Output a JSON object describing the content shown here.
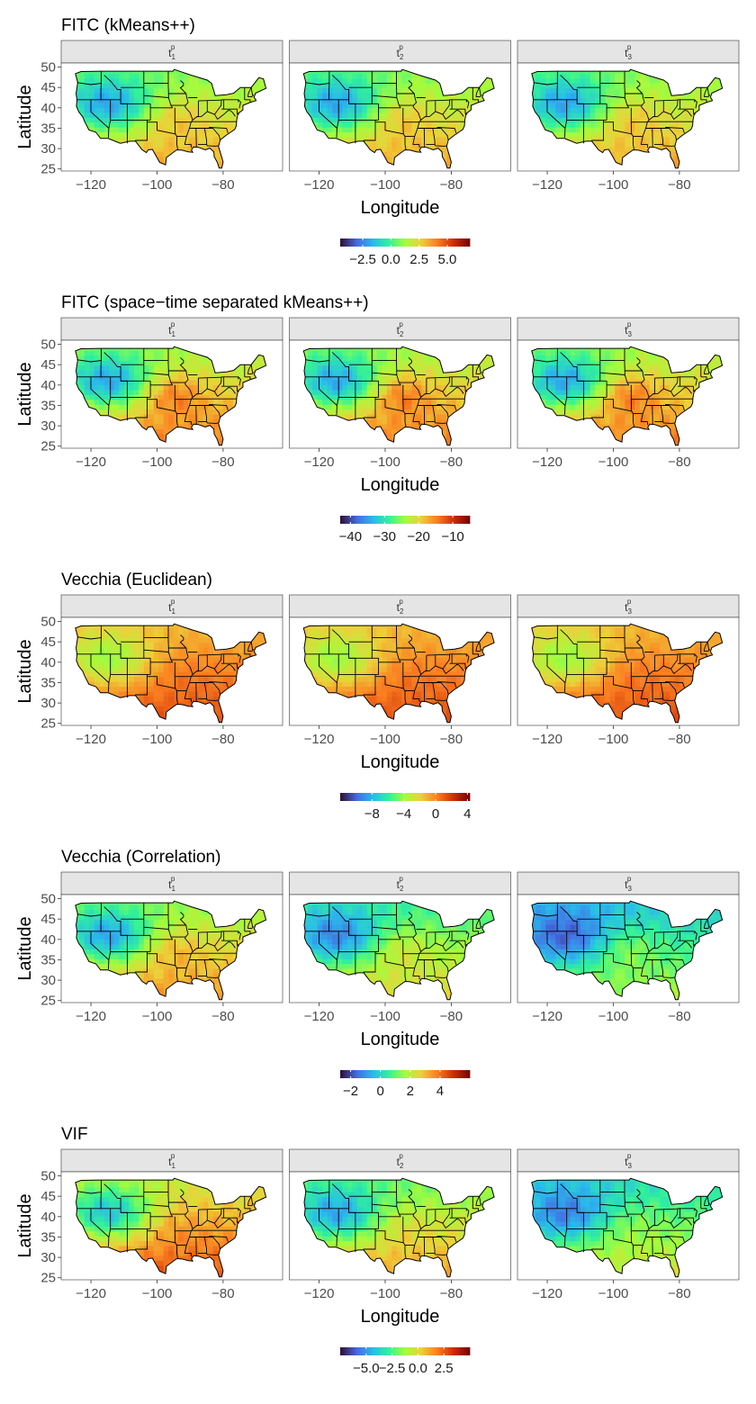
{
  "chart_data": [
    {
      "type": "heatmap",
      "title": "FITC (kMeans++)",
      "xlabel": "Longitude",
      "ylabel": "Latitude",
      "facets": [
        "t1",
        "t2",
        "t3"
      ],
      "x_ticks": [
        -120,
        -100,
        -80
      ],
      "x_tick_labels": [
        "−120",
        "−100",
        "−80"
      ],
      "y_ticks": [
        25,
        30,
        35,
        40,
        45,
        50
      ],
      "y_tick_labels": [
        "25",
        "30",
        "35",
        "40",
        "45",
        "50"
      ],
      "xlim": [
        -129,
        -62
      ],
      "ylim": [
        24.5,
        51
      ],
      "colorbar": {
        "range": [
          -4.5,
          7.0
        ],
        "ticks": [
          -2.5,
          0.0,
          2.5,
          5.0
        ],
        "tick_labels": [
          "−2.5",
          "0.0",
          "2.5",
          "5.0"
        ]
      },
      "pattern": {
        "west_min": -4.0,
        "east_max": 3.5,
        "coast_boost": 1.0,
        "drift_per_facet": 0.0
      }
    },
    {
      "type": "heatmap",
      "title": "FITC (space−time separated kMeans++)",
      "xlabel": "Longitude",
      "ylabel": "Latitude",
      "facets": [
        "t1",
        "t2",
        "t3"
      ],
      "x_ticks": [
        -120,
        -100,
        -80
      ],
      "x_tick_labels": [
        "−120",
        "−100",
        "−80"
      ],
      "y_ticks": [
        25,
        30,
        35,
        40,
        45,
        50
      ],
      "y_tick_labels": [
        "25",
        "30",
        "35",
        "40",
        "45",
        "50"
      ],
      "xlim": [
        -129,
        -62
      ],
      "ylim": [
        24.5,
        51
      ],
      "colorbar": {
        "range": [
          -43,
          -5
        ],
        "ticks": [
          -40,
          -30,
          -20,
          -10
        ],
        "tick_labels": [
          "−40",
          "−30",
          "−20",
          "−10"
        ]
      },
      "pattern": {
        "west_min": -42,
        "east_max": -14,
        "coast_boost": 6,
        "drift_per_facet": 0.0
      }
    },
    {
      "type": "heatmap",
      "title": "Vecchia (Euclidean)",
      "xlabel": "Longitude",
      "ylabel": "Latitude",
      "facets": [
        "t1",
        "t2",
        "t3"
      ],
      "x_ticks": [
        -120,
        -100,
        -80
      ],
      "x_tick_labels": [
        "−120",
        "−100",
        "−80"
      ],
      "y_ticks": [
        25,
        30,
        35,
        40,
        45,
        50
      ],
      "y_tick_labels": [
        "25",
        "30",
        "35",
        "40",
        "45",
        "50"
      ],
      "xlim": [
        -129,
        -62
      ],
      "ylim": [
        24.5,
        51
      ],
      "colorbar": {
        "range": [
          -12,
          4.3
        ],
        "ticks": [
          -8,
          -4,
          0,
          4
        ],
        "tick_labels": [
          "−8",
          "−4",
          "0",
          "4"
        ]
      },
      "pattern": {
        "west_min": -6,
        "east_max": 1.5,
        "coast_boost": 0.5,
        "drift_per_facet": 0.0
      }
    },
    {
      "type": "heatmap",
      "title": "Vecchia (Correlation)",
      "xlabel": "Longitude",
      "ylabel": "Latitude",
      "facets": [
        "t1",
        "t2",
        "t3"
      ],
      "x_ticks": [
        -120,
        -100,
        -80
      ],
      "x_tick_labels": [
        "−120",
        "−100",
        "−80"
      ],
      "y_ticks": [
        25,
        30,
        35,
        40,
        45,
        50
      ],
      "y_tick_labels": [
        "25",
        "30",
        "35",
        "40",
        "45",
        "50"
      ],
      "xlim": [
        -129,
        -62
      ],
      "ylim": [
        24.5,
        51
      ],
      "colorbar": {
        "range": [
          -2.7,
          6.0
        ],
        "ticks": [
          -2,
          0,
          2,
          4
        ],
        "tick_labels": [
          "−2",
          "0",
          "2",
          "4"
        ]
      },
      "pattern": {
        "west_min": -2.4,
        "east_max": 3.6,
        "coast_boost": 0.8,
        "drift_per_facet": -0.9
      }
    },
    {
      "type": "heatmap",
      "title": "VIF",
      "xlabel": "Longitude",
      "ylabel": "Latitude",
      "facets": [
        "t1",
        "t2",
        "t3"
      ],
      "x_ticks": [
        -120,
        -100,
        -80
      ],
      "x_tick_labels": [
        "−120",
        "−100",
        "−80"
      ],
      "y_ticks": [
        25,
        30,
        35,
        40,
        45,
        50
      ],
      "y_tick_labels": [
        "25",
        "30",
        "35",
        "40",
        "45",
        "50"
      ],
      "xlim": [
        -129,
        -62
      ],
      "ylim": [
        24.5,
        51
      ],
      "colorbar": {
        "range": [
          -7.5,
          5.0
        ],
        "ticks": [
          -5.0,
          -2.5,
          0.0,
          2.5
        ],
        "tick_labels": [
          "−5.0",
          "−2.5",
          "0.0",
          "2.5"
        ]
      },
      "pattern": {
        "west_min": -6.5,
        "east_max": 2.8,
        "coast_boost": 0.6,
        "drift_per_facet": -1.5
      }
    }
  ]
}
